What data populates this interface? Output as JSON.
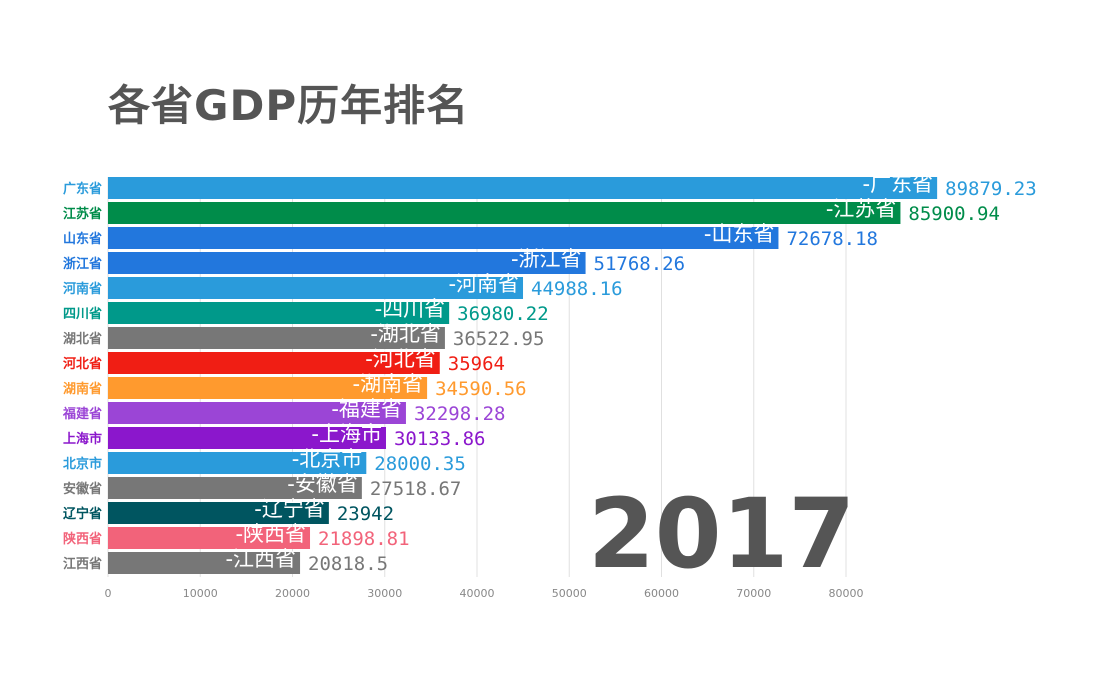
{
  "chart_data": {
    "type": "bar",
    "orientation": "horizontal",
    "title": "各省GDP历年排名",
    "year": "2017",
    "xlim": [
      0,
      90000
    ],
    "xticks": [
      0,
      10000,
      20000,
      30000,
      40000,
      50000,
      60000,
      70000,
      80000
    ],
    "grid": true,
    "categories": [
      "广东省",
      "江苏省",
      "山东省",
      "浙江省",
      "河南省",
      "四川省",
      "湖北省",
      "河北省",
      "湖南省",
      "福建省",
      "上海市",
      "北京市",
      "安徽省",
      "辽宁省",
      "陕西省",
      "江西省"
    ],
    "values": [
      89879.23,
      85900.94,
      72678.18,
      51768.26,
      44988.16,
      36980.22,
      36522.95,
      35964,
      34590.56,
      32298.28,
      30133.86,
      28000.35,
      27518.67,
      23942,
      21898.81,
      20818.5
    ],
    "value_labels": [
      "89879.23",
      "85900.94",
      "72678.18",
      "51768.26",
      "44988.16",
      "36980.22",
      "36522.95",
      "35964",
      "34590.56",
      "32298.28",
      "30133.86",
      "28000.35",
      "27518.67",
      "23942",
      "21898.81",
      "20818.5"
    ],
    "bar_labels": [
      "-广东省",
      "-江苏省",
      "-山东省",
      "-浙江省",
      "-河南省",
      "-四川省",
      "-湖北省",
      "-河北省",
      "-湖南省",
      "-福建省",
      "-上海市",
      "-北京市",
      "-安徽省",
      "-辽宁省",
      "-陕西省",
      "-江西省"
    ],
    "colors": [
      "#2A9BDB",
      "#008C4A",
      "#2277DD",
      "#2277DD",
      "#2A9BDB",
      "#00998A",
      "#777777",
      "#F01E14",
      "#FF9A2E",
      "#9B45D6",
      "#8B17CC",
      "#2A9BDB",
      "#777777",
      "#005560",
      "#F2637A",
      "#777777"
    ]
  }
}
